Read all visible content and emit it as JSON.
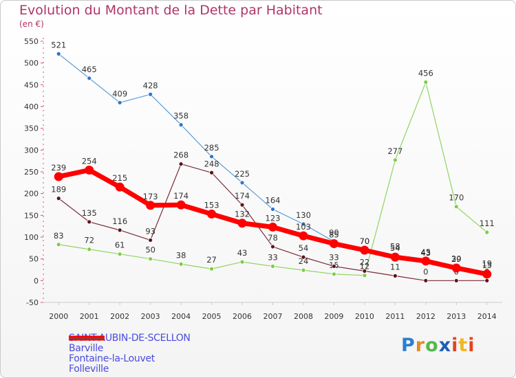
{
  "header": {
    "title": "Evolution du Montant de la Dette par Habitant",
    "unit": "(en €)"
  },
  "logo": {
    "text": "Proxiti"
  },
  "chart_data": {
    "type": "line",
    "title": "Evolution du Montant de la Dette par Habitant",
    "subtitle": "(en €)",
    "x": [
      "2000",
      "2001",
      "2002",
      "2003",
      "2004",
      "2005",
      "2006",
      "2007",
      "2008",
      "2009",
      "2010",
      "2011",
      "2012",
      "2013",
      "2014"
    ],
    "yticks": [
      -50,
      0,
      50,
      100,
      150,
      200,
      250,
      300,
      350,
      400,
      450,
      500,
      550
    ],
    "ylim": [
      -50,
      550
    ],
    "grid": false,
    "legend_position": "bottom-left",
    "series": [
      {
        "name": "Barville",
        "color": "#5b9bd5",
        "marker": "#2f76c3",
        "width": 1.2,
        "values": [
          521,
          465,
          409,
          428,
          358,
          285,
          225,
          164,
          130,
          90,
          70,
          58,
          43,
          30,
          19
        ]
      },
      {
        "name": "Fontaine-la-Louvet",
        "color": "#8fd45f",
        "marker": "#7ccd45",
        "width": 1.2,
        "values": [
          83,
          72,
          61,
          50,
          38,
          27,
          43,
          33,
          24,
          15,
          12,
          277,
          456,
          170,
          111
        ]
      },
      {
        "name": "Folleville",
        "color": "#7a2a36",
        "marker": "#5a141c",
        "width": 1.2,
        "values": [
          189,
          135,
          116,
          93,
          268,
          248,
          174,
          78,
          54,
          33,
          22,
          11,
          0,
          0,
          0
        ]
      },
      {
        "name": "SAINT-AUBIN-DE-SCELLON",
        "color": "#ff0000",
        "marker": "#ff0000",
        "width": 7,
        "values": [
          239,
          254,
          215,
          173,
          174,
          153,
          132,
          123,
          103,
          85,
          70,
          54,
          45,
          29,
          15
        ]
      }
    ]
  }
}
